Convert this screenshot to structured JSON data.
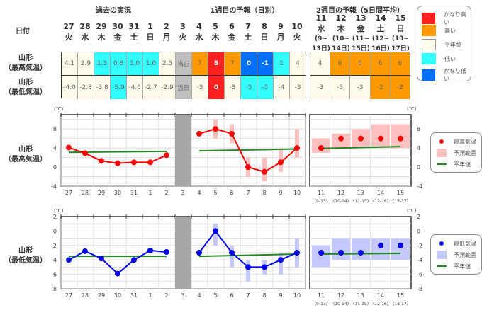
{
  "headers": {
    "past": "過去の実況",
    "week1": "1週目の予報（日別）",
    "week2": "2週目の予報（5日間平均）"
  },
  "row_labels": {
    "date": "日付",
    "high": [
      "山形",
      "（最高気温）"
    ],
    "low": [
      "山形",
      "（最低気温）"
    ]
  },
  "days": [
    {
      "d": "27",
      "w": "火"
    },
    {
      "d": "28",
      "w": "水"
    },
    {
      "d": "29",
      "w": "木"
    },
    {
      "d": "30",
      "w": "金"
    },
    {
      "d": "31",
      "w": "土"
    },
    {
      "d": "1",
      "w": "日"
    },
    {
      "d": "2",
      "w": "月"
    },
    {
      "d": "3",
      "w": "火"
    },
    {
      "d": "4",
      "w": "水"
    },
    {
      "d": "5",
      "w": "木"
    },
    {
      "d": "6",
      "w": "金"
    },
    {
      "d": "7",
      "w": "土"
    },
    {
      "d": "8",
      "w": "日"
    },
    {
      "d": "9",
      "w": "月"
    },
    {
      "d": "10",
      "w": "火"
    }
  ],
  "week2_days": [
    {
      "d": "11",
      "w": "水",
      "r1": "(9~",
      "r2": "13日)",
      "short": "(9-13)"
    },
    {
      "d": "12",
      "w": "木",
      "r1": "(10~",
      "r2": "14日)",
      "short": "(10-14)"
    },
    {
      "d": "13",
      "w": "金",
      "r1": "(11~",
      "r2": "15日)",
      "short": "(11-15)"
    },
    {
      "d": "14",
      "w": "土",
      "r1": "(12~",
      "r2": "16日)",
      "short": "(12-16)"
    },
    {
      "d": "15",
      "w": "日",
      "r1": "(13~",
      "r2": "17日)",
      "short": "(13-17)"
    }
  ],
  "colors": {
    "very_high": "#ff2020",
    "high": "#ff9900",
    "normal": "#fffbea",
    "low": "#33ffff",
    "very_low": "#0070ff",
    "today": "#bfbfbf"
  },
  "table": {
    "high": [
      [
        "4.1",
        "normal"
      ],
      [
        "2.9",
        "normal"
      ],
      [
        "1.3",
        "low"
      ],
      [
        "0.8",
        "low"
      ],
      [
        "1.0",
        "low"
      ],
      [
        "1.0",
        "low"
      ],
      [
        "2.5",
        "normal"
      ],
      [
        "当日",
        "today"
      ],
      [
        "7",
        "high"
      ],
      [
        "8",
        "very_high"
      ],
      [
        "7",
        "high"
      ],
      [
        "0",
        "very_low"
      ],
      [
        "-1",
        "very_low"
      ],
      [
        "1",
        "low"
      ],
      [
        "4",
        "normal"
      ]
    ],
    "low": [
      [
        "-4.0",
        "normal"
      ],
      [
        "-2.8",
        "normal"
      ],
      [
        "-3.8",
        "normal"
      ],
      [
        "-5.9",
        "low"
      ],
      [
        "-4.0",
        "normal"
      ],
      [
        "-2.7",
        "normal"
      ],
      [
        "-2.9",
        "normal"
      ],
      [
        "当日",
        "today"
      ],
      [
        "-3",
        "normal"
      ],
      [
        "0",
        "very_high"
      ],
      [
        "-3",
        "normal"
      ],
      [
        "-5",
        "low"
      ],
      [
        "-5",
        "low"
      ],
      [
        "-4",
        "normal"
      ],
      [
        "-3",
        "normal"
      ]
    ],
    "week2_high": [
      [
        "4",
        "normal"
      ],
      [
        "6",
        "high"
      ],
      [
        "6",
        "high"
      ],
      [
        "6",
        "high"
      ],
      [
        "6",
        "high"
      ]
    ],
    "week2_low": [
      [
        "-3",
        "normal"
      ],
      [
        "-3",
        "normal"
      ],
      [
        "-3",
        "normal"
      ],
      [
        "-2",
        "high"
      ],
      [
        "-2",
        "high"
      ]
    ]
  },
  "legend_table": [
    {
      "label": "かなり高い",
      "key": "very_high"
    },
    {
      "label": "高い",
      "key": "high"
    },
    {
      "label": "平年並",
      "key": "normal"
    },
    {
      "label": "低い",
      "key": "low"
    },
    {
      "label": "かなり低い",
      "key": "very_low"
    }
  ],
  "chart_data": [
    {
      "type": "line",
      "title": "山形（最高気温）",
      "unit": "(℃)",
      "ylim": [
        -4,
        11
      ],
      "yticks": [
        -4,
        0,
        4,
        8
      ],
      "x": [
        "27",
        "28",
        "29",
        "30",
        "31",
        "1",
        "2",
        "3",
        "4",
        "5",
        "6",
        "7",
        "8",
        "9",
        "10"
      ],
      "observed": [
        4.1,
        2.9,
        1.3,
        0.8,
        1.0,
        1.0,
        2.5
      ],
      "forecast": [
        7,
        8,
        7,
        0,
        -1,
        1,
        4
      ],
      "forecast_range": [
        null,
        [
          6,
          10
        ],
        [
          5,
          9
        ],
        [
          -2,
          2
        ],
        [
          -3,
          2
        ],
        [
          -1,
          4
        ],
        [
          2,
          8
        ]
      ],
      "normal_past": [
        3.1,
        3.3
      ],
      "normal_week1": [
        3.4,
        3.8
      ],
      "week2_x": [
        "11",
        "12",
        "13",
        "14",
        "15"
      ],
      "week2": [
        4,
        6,
        6,
        6,
        6
      ],
      "week2_range": [
        [
          3,
          6
        ],
        [
          4,
          7
        ],
        [
          4,
          8
        ],
        [
          4,
          9
        ],
        [
          4,
          9
        ]
      ],
      "normal_week2": [
        3.9,
        4.3
      ],
      "legend": {
        "point": "最高気温",
        "range": "予測範囲",
        "normal": "平年値"
      },
      "color": "#ff0000",
      "range_color": "#ffc0c0"
    },
    {
      "type": "line",
      "title": "山形（最低気温）",
      "unit": "(℃)",
      "ylim": [
        -8,
        2
      ],
      "yticks": [
        -8,
        -6,
        -4,
        -2,
        0,
        2
      ],
      "x": [
        "27",
        "28",
        "29",
        "30",
        "31",
        "1",
        "2",
        "3",
        "4",
        "5",
        "6",
        "7",
        "8",
        "9",
        "10"
      ],
      "observed": [
        -4.0,
        -2.8,
        -3.8,
        -5.9,
        -4.0,
        -2.7,
        -2.9
      ],
      "forecast": [
        -3,
        0,
        -3,
        -5,
        -5,
        -4,
        -3
      ],
      "forecast_range": [
        null,
        [
          -2,
          1
        ],
        [
          -5,
          -2
        ],
        [
          -7,
          -4
        ],
        [
          -6,
          -4
        ],
        [
          -6,
          -3
        ],
        [
          -5,
          -1
        ]
      ],
      "normal_past": [
        -3.5,
        -3.5
      ],
      "normal_week1": [
        -3.5,
        -3.2
      ],
      "week2_x": [
        "11",
        "12",
        "13",
        "14",
        "15"
      ],
      "week2": [
        -3,
        -3,
        -3,
        -2,
        -2
      ],
      "week2_range": [
        [
          -5,
          -2
        ],
        [
          -4,
          -1
        ],
        [
          -4,
          -1
        ],
        [
          -4,
          -1
        ],
        [
          -4,
          -1
        ]
      ],
      "normal_week2": [
        -3.2,
        -3.1
      ],
      "legend": {
        "point": "最低気温",
        "range": "予測範囲",
        "normal": "平年値"
      },
      "color": "#0000ee",
      "range_color": "#c4c8ff"
    }
  ]
}
